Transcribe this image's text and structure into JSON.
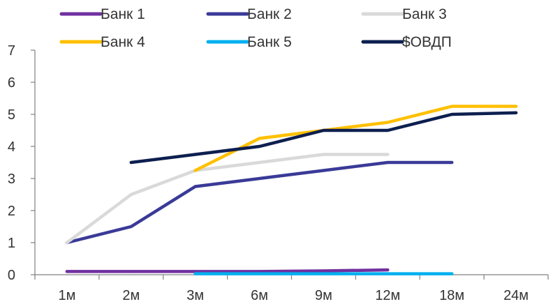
{
  "chart_data": {
    "type": "line",
    "title": "",
    "xlabel": "",
    "ylabel": "",
    "categories": [
      "1м",
      "2м",
      "3м",
      "6м",
      "9м",
      "12м",
      "18м",
      "24м"
    ],
    "ylim": [
      0,
      7
    ],
    "yticks": [
      "0",
      "1",
      "2",
      "3",
      "4",
      "5",
      "6",
      "7"
    ],
    "grid": false,
    "legend_position": "top",
    "series": [
      {
        "name": "Банк 1",
        "color": "#7030A0",
        "values": [
          0.1,
          0.1,
          0.1,
          0.1,
          0.12,
          0.15,
          null,
          null
        ]
      },
      {
        "name": "Банк 2",
        "color": "#3A3A98",
        "values": [
          1.0,
          1.5,
          2.75,
          3.0,
          3.25,
          3.5,
          3.5,
          null
        ]
      },
      {
        "name": "Банк 3",
        "color": "#D9D9D9",
        "values": [
          1.0,
          2.5,
          3.25,
          3.5,
          3.75,
          3.75,
          null,
          null
        ]
      },
      {
        "name": "Банк 4",
        "color": "#FFC000",
        "values": [
          null,
          null,
          3.25,
          4.25,
          4.5,
          4.75,
          5.25,
          5.25
        ]
      },
      {
        "name": "Банк 5",
        "color": "#00B0F0",
        "values": [
          null,
          null,
          0.03,
          0.03,
          0.03,
          0.03,
          0.03,
          null
        ]
      },
      {
        "name": "$ОВДП",
        "color": "#0D1F4F",
        "values": [
          null,
          3.5,
          3.75,
          4.0,
          4.5,
          4.5,
          5.0,
          5.05
        ]
      }
    ]
  }
}
